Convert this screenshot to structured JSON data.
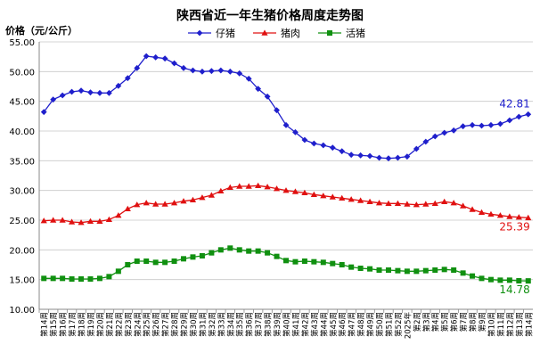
{
  "chart_data": {
    "type": "line",
    "title": "陕西省近一年生猪价格周度走势图",
    "ylabel": "价格（元/公斤）",
    "xlabel": "",
    "ylim": [
      10,
      55
    ],
    "yticks": [
      "10.00",
      "15.00",
      "20.00",
      "25.00",
      "30.00",
      "35.00",
      "40.00",
      "45.00",
      "50.00",
      "55.00"
    ],
    "grid": true,
    "legend_position": "top-center",
    "categories": [
      "第14周",
      "第15周",
      "第16周",
      "第17周",
      "第18周",
      "第19周",
      "第20周",
      "第21周",
      "第22周",
      "第23周",
      "第24周",
      "第25周",
      "第26周",
      "第27周",
      "第28周",
      "第29周",
      "第30周",
      "第31周",
      "第32周",
      "第33周",
      "第34周",
      "第35周",
      "第36周",
      "第37周",
      "第38周",
      "第39周",
      "第40周",
      "第41周",
      "第42周",
      "第43周",
      "第44周",
      "第45周",
      "第46周",
      "第47周",
      "第48周",
      "第49周",
      "第50周",
      "第51周",
      "第52周",
      "2025年",
      "第2周",
      "第3周",
      "第4周",
      "第5周",
      "第6周",
      "第7周",
      "第8周",
      "第9周",
      "第10周",
      "第11周",
      "第12周",
      "第13周",
      "第14周"
    ],
    "series": [
      {
        "name": "仔猪",
        "color": "#1f1fcc",
        "marker": "diamond",
        "end_label": "42.81",
        "values": [
          43.2,
          45.3,
          46.0,
          46.6,
          46.8,
          46.5,
          46.4,
          46.4,
          47.6,
          48.9,
          50.6,
          52.6,
          52.4,
          52.2,
          51.4,
          50.6,
          50.2,
          50.0,
          50.1,
          50.2,
          50.0,
          49.7,
          48.8,
          47.1,
          45.8,
          43.5,
          41.0,
          39.8,
          38.5,
          37.9,
          37.6,
          37.2,
          36.6,
          36.0,
          35.9,
          35.8,
          35.5,
          35.4,
          35.5,
          35.7,
          37.0,
          38.2,
          39.1,
          39.7,
          40.1,
          40.8,
          41.0,
          40.9,
          41.0,
          41.2,
          41.8,
          42.4,
          42.81
        ]
      },
      {
        "name": "猪肉",
        "color": "#e01010",
        "marker": "triangle",
        "end_label": "25.39",
        "values": [
          24.9,
          25.0,
          25.0,
          24.7,
          24.6,
          24.8,
          24.8,
          25.1,
          25.8,
          26.9,
          27.6,
          27.9,
          27.7,
          27.7,
          27.9,
          28.2,
          28.4,
          28.8,
          29.2,
          29.9,
          30.5,
          30.7,
          30.7,
          30.8,
          30.6,
          30.3,
          30.0,
          29.8,
          29.6,
          29.3,
          29.1,
          28.9,
          28.7,
          28.5,
          28.3,
          28.1,
          27.9,
          27.8,
          27.8,
          27.7,
          27.6,
          27.7,
          27.8,
          28.1,
          27.9,
          27.4,
          26.8,
          26.3,
          26.0,
          25.8,
          25.6,
          25.5,
          25.39
        ]
      },
      {
        "name": "活猪",
        "color": "#109010",
        "marker": "square",
        "end_label": "14.78",
        "values": [
          15.2,
          15.2,
          15.2,
          15.1,
          15.1,
          15.1,
          15.2,
          15.5,
          16.4,
          17.5,
          18.1,
          18.1,
          17.9,
          17.9,
          18.1,
          18.5,
          18.8,
          19.0,
          19.5,
          20.0,
          20.3,
          20.0,
          19.8,
          19.8,
          19.5,
          18.9,
          18.2,
          18.0,
          18.1,
          18.0,
          17.9,
          17.7,
          17.5,
          17.1,
          16.9,
          16.8,
          16.6,
          16.6,
          16.5,
          16.4,
          16.4,
          16.5,
          16.6,
          16.7,
          16.6,
          16.1,
          15.6,
          15.2,
          15.0,
          14.9,
          14.9,
          14.8,
          14.78
        ]
      }
    ]
  }
}
